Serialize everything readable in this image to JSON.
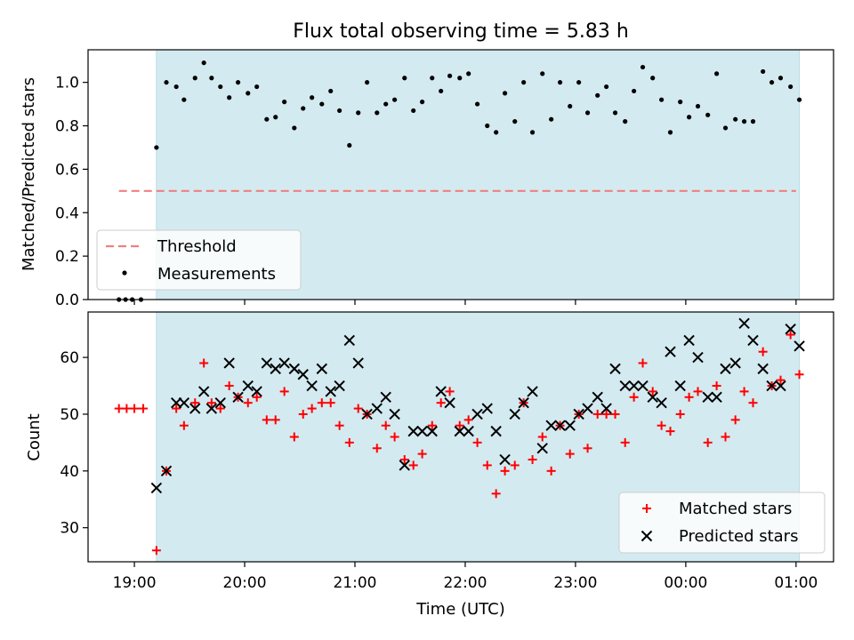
{
  "figure": {
    "title": "Flux total observing time = 5.83 h",
    "xlabel": "Time (UTC)",
    "x_ticks": [
      "19:00",
      "20:00",
      "21:00",
      "22:00",
      "23:00",
      "00:00",
      "01:00"
    ],
    "x_tick_positions_hours": [
      19,
      20,
      21,
      22,
      23,
      24,
      25
    ],
    "xlim_hours": [
      18.58,
      25.34
    ],
    "observing_window_hours": [
      19.2,
      25.03
    ],
    "shade_color": "#d4eaf1",
    "shade_edge_color": "#b7dce6"
  },
  "chart_data": [
    {
      "type": "scatter",
      "panel": "top",
      "ylabel": "Matched/Predicted stars",
      "ylim": [
        0.0,
        1.15
      ],
      "y_ticks": [
        "0.0",
        "0.2",
        "0.4",
        "0.6",
        "0.8",
        "1.0"
      ],
      "y_tick_values": [
        0.0,
        0.2,
        0.4,
        0.6,
        0.8,
        1.0
      ],
      "legend_position": "lower-left",
      "threshold": {
        "name": "Threshold",
        "value": 0.5,
        "x_range_hours": [
          18.86,
          25.0
        ],
        "color": "#f08080",
        "style": "dashed"
      },
      "series": [
        {
          "name": "Measurements",
          "color": "#000000",
          "marker": "dot",
          "points": [
            [
              18.86,
              0.0
            ],
            [
              18.92,
              0.0
            ],
            [
              18.98,
              0.0
            ],
            [
              19.06,
              0.0
            ],
            [
              19.2,
              0.7
            ],
            [
              19.29,
              1.0
            ],
            [
              19.38,
              0.98
            ],
            [
              19.45,
              0.92
            ],
            [
              19.55,
              1.02
            ],
            [
              19.63,
              1.09
            ],
            [
              19.7,
              1.02
            ],
            [
              19.78,
              0.98
            ],
            [
              19.86,
              0.93
            ],
            [
              19.94,
              1.0
            ],
            [
              20.03,
              0.95
            ],
            [
              20.11,
              0.98
            ],
            [
              20.2,
              0.83
            ],
            [
              20.28,
              0.84
            ],
            [
              20.36,
              0.91
            ],
            [
              20.45,
              0.79
            ],
            [
              20.53,
              0.88
            ],
            [
              20.61,
              0.93
            ],
            [
              20.7,
              0.9
            ],
            [
              20.78,
              0.96
            ],
            [
              20.86,
              0.87
            ],
            [
              20.95,
              0.71
            ],
            [
              21.03,
              0.86
            ],
            [
              21.11,
              1.0
            ],
            [
              21.2,
              0.86
            ],
            [
              21.28,
              0.9
            ],
            [
              21.36,
              0.92
            ],
            [
              21.45,
              1.02
            ],
            [
              21.53,
              0.87
            ],
            [
              21.61,
              0.91
            ],
            [
              21.7,
              1.02
            ],
            [
              21.78,
              0.96
            ],
            [
              21.86,
              1.03
            ],
            [
              21.95,
              1.02
            ],
            [
              22.03,
              1.04
            ],
            [
              22.11,
              0.9
            ],
            [
              22.2,
              0.8
            ],
            [
              22.28,
              0.77
            ],
            [
              22.36,
              0.95
            ],
            [
              22.45,
              0.82
            ],
            [
              22.53,
              1.0
            ],
            [
              22.61,
              0.77
            ],
            [
              22.7,
              1.04
            ],
            [
              22.78,
              0.83
            ],
            [
              22.86,
              1.0
            ],
            [
              22.95,
              0.89
            ],
            [
              23.03,
              1.0
            ],
            [
              23.11,
              0.86
            ],
            [
              23.2,
              0.94
            ],
            [
              23.28,
              0.98
            ],
            [
              23.36,
              0.86
            ],
            [
              23.45,
              0.82
            ],
            [
              23.53,
              0.96
            ],
            [
              23.61,
              1.07
            ],
            [
              23.7,
              1.02
            ],
            [
              23.78,
              0.92
            ],
            [
              23.86,
              0.77
            ],
            [
              23.95,
              0.91
            ],
            [
              24.03,
              0.84
            ],
            [
              24.11,
              0.89
            ],
            [
              24.2,
              0.85
            ],
            [
              24.28,
              1.04
            ],
            [
              24.36,
              0.79
            ],
            [
              24.45,
              0.83
            ],
            [
              24.53,
              0.82
            ],
            [
              24.61,
              0.82
            ],
            [
              24.7,
              1.05
            ],
            [
              24.78,
              1.0
            ],
            [
              24.86,
              1.02
            ],
            [
              24.95,
              0.98
            ],
            [
              25.03,
              0.92
            ]
          ]
        }
      ]
    },
    {
      "type": "scatter",
      "panel": "bottom",
      "ylabel": "Count",
      "ylim": [
        24,
        68
      ],
      "y_ticks": [
        "30",
        "40",
        "50",
        "60"
      ],
      "y_tick_values": [
        30,
        40,
        50,
        60
      ],
      "legend_position": "lower-right",
      "series": [
        {
          "name": "Matched stars",
          "color": "#ff0000",
          "marker": "plus",
          "points": [
            [
              18.86,
              51
            ],
            [
              18.93,
              51
            ],
            [
              19.0,
              51
            ],
            [
              19.08,
              51
            ],
            [
              19.2,
              26
            ],
            [
              19.29,
              40
            ],
            [
              19.38,
              51
            ],
            [
              19.45,
              48
            ],
            [
              19.55,
              52
            ],
            [
              19.63,
              59
            ],
            [
              19.7,
              52
            ],
            [
              19.78,
              51
            ],
            [
              19.86,
              55
            ],
            [
              19.94,
              53
            ],
            [
              20.03,
              52
            ],
            [
              20.11,
              53
            ],
            [
              20.2,
              49
            ],
            [
              20.28,
              49
            ],
            [
              20.36,
              54
            ],
            [
              20.45,
              46
            ],
            [
              20.53,
              50
            ],
            [
              20.61,
              51
            ],
            [
              20.7,
              52
            ],
            [
              20.78,
              52
            ],
            [
              20.86,
              48
            ],
            [
              20.95,
              45
            ],
            [
              21.03,
              51
            ],
            [
              21.11,
              50
            ],
            [
              21.2,
              44
            ],
            [
              21.28,
              48
            ],
            [
              21.36,
              46
            ],
            [
              21.45,
              42
            ],
            [
              21.53,
              41
            ],
            [
              21.61,
              43
            ],
            [
              21.7,
              48
            ],
            [
              21.78,
              52
            ],
            [
              21.86,
              54
            ],
            [
              21.95,
              48
            ],
            [
              22.03,
              49
            ],
            [
              22.11,
              45
            ],
            [
              22.2,
              41
            ],
            [
              22.28,
              36
            ],
            [
              22.36,
              40
            ],
            [
              22.45,
              41
            ],
            [
              22.53,
              52
            ],
            [
              22.61,
              42
            ],
            [
              22.7,
              46
            ],
            [
              22.78,
              40
            ],
            [
              22.86,
              48
            ],
            [
              22.95,
              43
            ],
            [
              23.03,
              50
            ],
            [
              23.11,
              44
            ],
            [
              23.2,
              50
            ],
            [
              23.28,
              50
            ],
            [
              23.36,
              50
            ],
            [
              23.45,
              45
            ],
            [
              23.53,
              53
            ],
            [
              23.61,
              59
            ],
            [
              23.7,
              54
            ],
            [
              23.78,
              48
            ],
            [
              23.86,
              47
            ],
            [
              23.95,
              50
            ],
            [
              24.03,
              53
            ],
            [
              24.11,
              54
            ],
            [
              24.2,
              45
            ],
            [
              24.28,
              55
            ],
            [
              24.36,
              46
            ],
            [
              24.45,
              49
            ],
            [
              24.53,
              54
            ],
            [
              24.61,
              52
            ],
            [
              24.7,
              61
            ],
            [
              24.78,
              55
            ],
            [
              24.86,
              56
            ],
            [
              24.95,
              64
            ],
            [
              25.03,
              57
            ]
          ]
        },
        {
          "name": "Predicted stars",
          "color": "#000000",
          "marker": "x",
          "points": [
            [
              19.2,
              37
            ],
            [
              19.29,
              40
            ],
            [
              19.38,
              52
            ],
            [
              19.45,
              52
            ],
            [
              19.55,
              51
            ],
            [
              19.63,
              54
            ],
            [
              19.7,
              51
            ],
            [
              19.78,
              52
            ],
            [
              19.86,
              59
            ],
            [
              19.94,
              53
            ],
            [
              20.03,
              55
            ],
            [
              20.11,
              54
            ],
            [
              20.2,
              59
            ],
            [
              20.28,
              58
            ],
            [
              20.36,
              59
            ],
            [
              20.45,
              58
            ],
            [
              20.53,
              57
            ],
            [
              20.61,
              55
            ],
            [
              20.7,
              58
            ],
            [
              20.78,
              54
            ],
            [
              20.86,
              55
            ],
            [
              20.95,
              63
            ],
            [
              21.03,
              59
            ],
            [
              21.11,
              50
            ],
            [
              21.2,
              51
            ],
            [
              21.28,
              53
            ],
            [
              21.36,
              50
            ],
            [
              21.45,
              41
            ],
            [
              21.53,
              47
            ],
            [
              21.61,
              47
            ],
            [
              21.7,
              47
            ],
            [
              21.78,
              54
            ],
            [
              21.86,
              52
            ],
            [
              21.95,
              47
            ],
            [
              22.03,
              47
            ],
            [
              22.11,
              50
            ],
            [
              22.2,
              51
            ],
            [
              22.28,
              47
            ],
            [
              22.36,
              42
            ],
            [
              22.45,
              50
            ],
            [
              22.53,
              52
            ],
            [
              22.61,
              54
            ],
            [
              22.7,
              44
            ],
            [
              22.78,
              48
            ],
            [
              22.86,
              48
            ],
            [
              22.95,
              48
            ],
            [
              23.03,
              50
            ],
            [
              23.11,
              51
            ],
            [
              23.2,
              53
            ],
            [
              23.28,
              51
            ],
            [
              23.36,
              58
            ],
            [
              23.45,
              55
            ],
            [
              23.53,
              55
            ],
            [
              23.61,
              55
            ],
            [
              23.7,
              53
            ],
            [
              23.78,
              52
            ],
            [
              23.86,
              61
            ],
            [
              23.95,
              55
            ],
            [
              24.03,
              63
            ],
            [
              24.11,
              60
            ],
            [
              24.2,
              53
            ],
            [
              24.28,
              53
            ],
            [
              24.36,
              58
            ],
            [
              24.45,
              59
            ],
            [
              24.53,
              66
            ],
            [
              24.61,
              63
            ],
            [
              24.7,
              58
            ],
            [
              24.78,
              55
            ],
            [
              24.86,
              55
            ],
            [
              24.95,
              65
            ],
            [
              25.03,
              62
            ]
          ]
        }
      ]
    }
  ]
}
